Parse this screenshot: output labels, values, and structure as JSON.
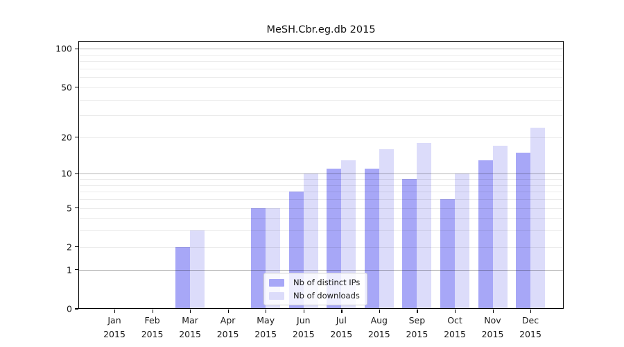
{
  "figure": {
    "background": "#ffffff"
  },
  "chart_data": {
    "type": "bar",
    "title": "MeSH.Cbr.eg.db 2015",
    "year_label": "2015",
    "categories": [
      "Jan",
      "Feb",
      "Mar",
      "Apr",
      "May",
      "Jun",
      "Jul",
      "Aug",
      "Sep",
      "Oct",
      "Nov",
      "Dec"
    ],
    "series": [
      {
        "name": "Nb of distinct IPs",
        "color": "#a7a7f7",
        "values": [
          0,
          0,
          2,
          0,
          5,
          7,
          11,
          11,
          9,
          6,
          13,
          15
        ]
      },
      {
        "name": "Nb of downloads",
        "color": "#dcdcfa",
        "values": [
          0,
          0,
          3,
          0,
          5,
          10,
          13,
          16,
          18,
          10,
          17,
          24
        ]
      }
    ],
    "xlabel": "",
    "ylabel": "",
    "y_scale": "log1p",
    "ylim": [
      0,
      115
    ],
    "y_ticks": [
      0,
      1,
      2,
      5,
      10,
      20,
      50,
      100
    ],
    "grid": {
      "orientation": "horizontal",
      "minor_values": [
        2,
        3,
        4,
        5,
        6,
        7,
        8,
        9,
        20,
        30,
        40,
        50,
        60,
        70,
        80,
        90
      ],
      "major_values": [
        1,
        10,
        100
      ]
    },
    "legend": {
      "position": "lower-center",
      "frame": true
    }
  }
}
